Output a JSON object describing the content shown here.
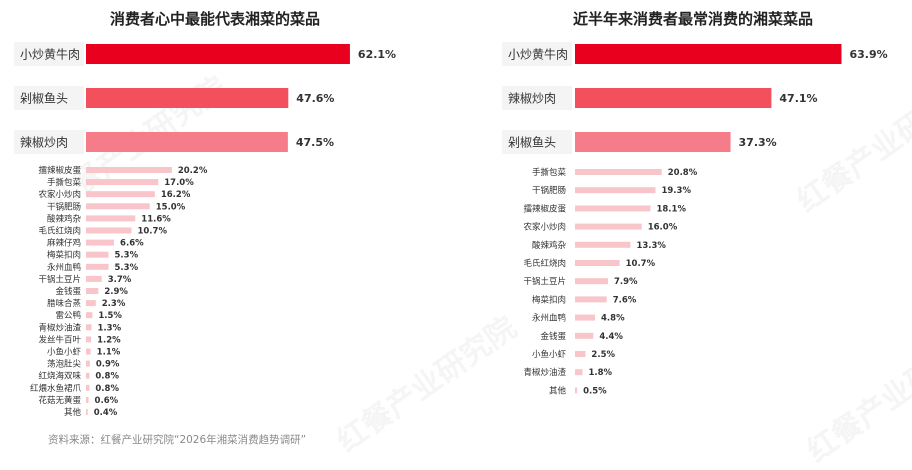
{
  "watermark": "红餐产业研究院",
  "source": "资料来源：红餐产业研究院“2026年湘菜消费趋势调研”",
  "colors": {
    "top1": "#e8001e",
    "top2": "#f3505e",
    "top3": "#f57d8a",
    "rest": "#f8c5cb",
    "label_box": "#f4f4f4"
  },
  "chart_data": [
    {
      "type": "bar",
      "orientation": "horizontal",
      "title": "消费者心中最能代表湘菜的菜品",
      "categories": [
        "小炒黄牛肉",
        "剁椒鱼头",
        "辣椒炒肉",
        "擂辣椒皮蛋",
        "手撕包菜",
        "农家小炒肉",
        "干锅肥肠",
        "酸辣鸡杂",
        "毛氏红烧肉",
        "麻辣仔鸡",
        "梅菜扣肉",
        "永州血鸭",
        "干锅土豆片",
        "金钱蛋",
        "腊味合蒸",
        "雷公鸭",
        "青椒炒油渣",
        "发丝牛百叶",
        "小鱼小虾",
        "荡泡肚尖",
        "红烧海双味",
        "红煨水鱼裙爪",
        "花菇无黄蛋",
        "其他"
      ],
      "values": [
        62.1,
        47.6,
        47.5,
        20.2,
        17.0,
        16.2,
        15.0,
        11.6,
        10.7,
        6.6,
        5.3,
        5.3,
        3.7,
        2.9,
        2.3,
        1.5,
        1.3,
        1.2,
        1.1,
        0.9,
        0.8,
        0.8,
        0.6,
        0.4
      ],
      "value_labels": [
        "62.1%",
        "47.6%",
        "47.5%",
        "20.2%",
        "17.0%",
        "16.2%",
        "15.0%",
        "11.6%",
        "10.7%",
        "6.6%",
        "5.3%",
        "5.3%",
        "3.7%",
        "2.9%",
        "2.3%",
        "1.5%",
        "1.3%",
        "1.2%",
        "1.1%",
        "0.9%",
        "0.8%",
        "0.8%",
        "0.6%",
        "0.4%"
      ]
    },
    {
      "type": "bar",
      "orientation": "horizontal",
      "title": "近半年来消费者最常消费的湘菜菜品",
      "categories": [
        "小炒黄牛肉",
        "辣椒炒肉",
        "剁椒鱼头",
        "手撕包菜",
        "干锅肥肠",
        "擂辣椒皮蛋",
        "农家小炒肉",
        "酸辣鸡杂",
        "毛氏红烧肉",
        "干锅土豆片",
        "梅菜扣肉",
        "永州血鸭",
        "金钱蛋",
        "小鱼小虾",
        "青椒炒油渣",
        "其他"
      ],
      "values": [
        63.9,
        47.1,
        37.3,
        20.8,
        19.3,
        18.1,
        16.0,
        13.3,
        10.7,
        7.9,
        7.6,
        4.8,
        4.4,
        2.5,
        1.8,
        0.5
      ],
      "value_labels": [
        "63.9%",
        "47.1%",
        "37.3%",
        "20.8%",
        "19.3%",
        "18.1%",
        "16.0%",
        "13.3%",
        "10.7%",
        "7.9%",
        "7.6%",
        "4.8%",
        "4.4%",
        "2.5%",
        "1.8%",
        "0.5%"
      ]
    }
  ]
}
